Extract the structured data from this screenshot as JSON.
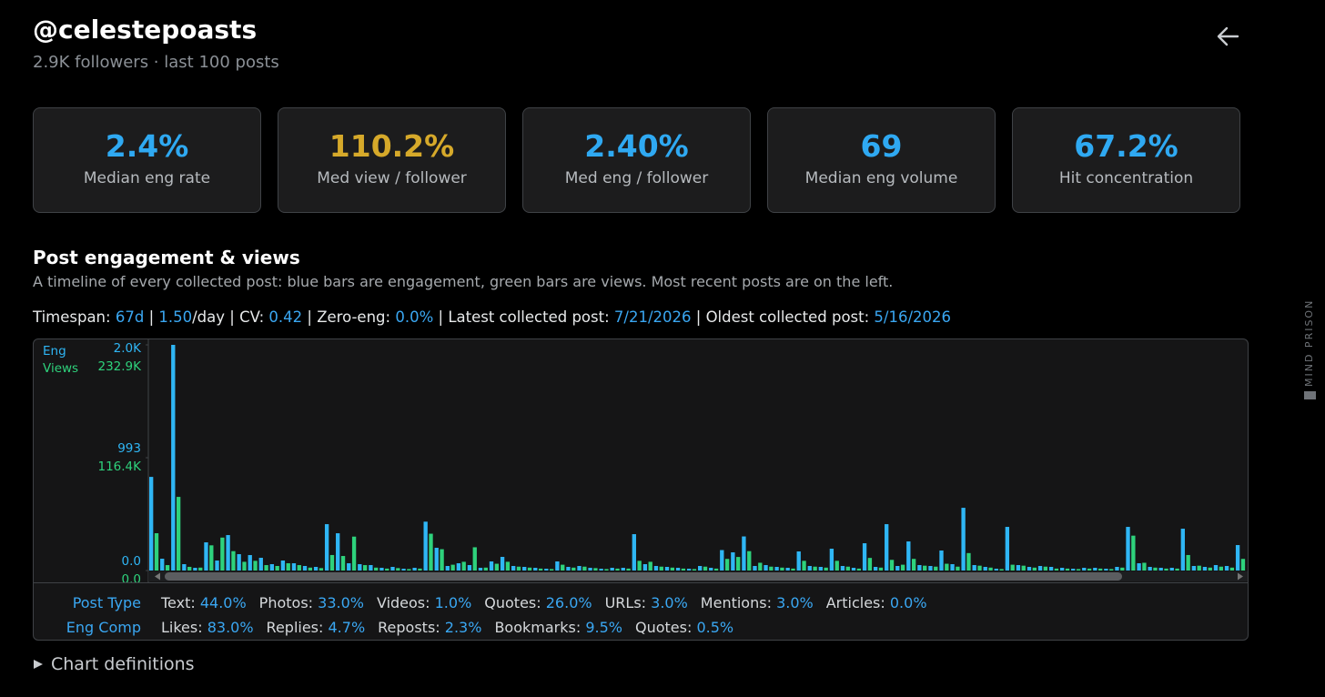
{
  "header": {
    "title": "@celestepoasts",
    "subtitle": "2.9K followers · last 100 posts"
  },
  "stats": [
    {
      "value": "2.4%",
      "label": "Median eng rate",
      "color": "#2fa9f2"
    },
    {
      "value": "110.2%",
      "label": "Med view / follower",
      "color": "#d6a92a"
    },
    {
      "value": "2.40%",
      "label": "Med eng / follower",
      "color": "#2fa9f2"
    },
    {
      "value": "69",
      "label": "Median eng volume",
      "color": "#2fa9f2"
    },
    {
      "value": "67.2%",
      "label": "Hit concentration",
      "color": "#2fa9f2"
    }
  ],
  "section": {
    "title": "Post engagement & views",
    "description": "A timeline of every collected post: blue bars are engagement, green bars are views. Most recent posts are on the left."
  },
  "meta": {
    "separator": "|",
    "items": [
      {
        "label": "Timespan:",
        "value": "67d"
      },
      {
        "value": "1.50",
        "suffix": "/day"
      },
      {
        "label": "CV:",
        "value": "0.42"
      },
      {
        "label": "Zero-eng:",
        "value": "0.0%"
      },
      {
        "label": "Latest collected post:",
        "value": "7/21/2026"
      },
      {
        "label": "Oldest collected post:",
        "value": "5/16/2026"
      }
    ]
  },
  "chart_data": {
    "type": "bar",
    "y_label": "Eng",
    "y2_label": "Views",
    "ylim": [
      0,
      1986
    ],
    "yticks": [
      {
        "value": 0,
        "label": "0.0"
      },
      993,
      {
        "value": 1986,
        "label": "2.0K"
      }
    ],
    "y2lim": [
      0,
      232900
    ],
    "y2ticks": [
      {
        "value": 0,
        "label": "0.0"
      },
      {
        "value": 116400,
        "label": "116.4K"
      },
      {
        "value": 232900,
        "label": "232.9K"
      }
    ],
    "series": [
      {
        "name": "Eng",
        "color": "#2fb6f5",
        "values": [
          824,
          104,
          1986,
          56,
          24,
          248,
          88,
          312,
          144,
          136,
          112,
          56,
          88,
          64,
          40,
          32,
          408,
          328,
          64,
          56,
          48,
          24,
          32,
          16,
          24,
          430,
          200,
          40,
          64,
          48,
          24,
          80,
          120,
          40,
          32,
          24,
          16,
          80,
          32,
          40,
          24,
          16,
          24,
          24,
          320,
          56,
          40,
          32,
          24,
          16,
          40,
          24,
          180,
          160,
          300,
          40,
          48,
          32,
          24,
          168,
          40,
          32,
          192,
          40,
          24,
          240,
          32,
          408,
          40,
          256,
          48,
          40,
          176,
          56,
          552,
          48,
          32,
          16,
          384,
          48,
          32,
          40,
          32,
          24,
          16,
          24,
          24,
          16,
          32,
          384,
          64,
          32,
          24,
          24,
          368,
          40,
          32,
          48,
          40,
          224
        ]
      },
      {
        "name": "Views",
        "color": "#2ed27c",
        "axis": "y2",
        "values": [
          38500,
          5600,
          76000,
          3800,
          3000,
          26000,
          34000,
          20000,
          9000,
          10000,
          5600,
          4700,
          7500,
          5600,
          3000,
          2500,
          16000,
          15000,
          35000,
          5600,
          3000,
          2000,
          2500,
          1500,
          2000,
          38000,
          22000,
          6000,
          9000,
          24000,
          3000,
          7000,
          9000,
          4000,
          3000,
          2000,
          1500,
          6000,
          3000,
          4000,
          2500,
          1500,
          2000,
          2000,
          10000,
          9000,
          4000,
          3000,
          2000,
          1500,
          4000,
          2000,
          12000,
          14000,
          20000,
          8000,
          4000,
          3000,
          2000,
          10000,
          4000,
          3000,
          10000,
          4000,
          2000,
          13000,
          3000,
          11000,
          6000,
          12000,
          5000,
          4000,
          7000,
          4000,
          18000,
          5000,
          3000,
          1500,
          6000,
          5000,
          3000,
          4000,
          2000,
          2000,
          1500,
          2000,
          2000,
          1500,
          3000,
          36000,
          8000,
          3000,
          2000,
          2000,
          16000,
          5000,
          3000,
          4000,
          3000,
          12000
        ]
      }
    ]
  },
  "breakdown": [
    {
      "label": "Post Type",
      "items": [
        {
          "label": "Text:",
          "value": "44.0%"
        },
        {
          "label": "Photos:",
          "value": "33.0%"
        },
        {
          "label": "Videos:",
          "value": "1.0%"
        },
        {
          "label": "Quotes:",
          "value": "26.0%"
        },
        {
          "label": "URLs:",
          "value": "3.0%"
        },
        {
          "label": "Mentions:",
          "value": "3.0%"
        },
        {
          "label": "Articles:",
          "value": "0.0%"
        }
      ]
    },
    {
      "label": "Eng Comp",
      "items": [
        {
          "label": "Likes:",
          "value": "83.0%"
        },
        {
          "label": "Replies:",
          "value": "4.7%"
        },
        {
          "label": "Reposts:",
          "value": "2.3%"
        },
        {
          "label": "Bookmarks:",
          "value": "9.5%"
        },
        {
          "label": "Quotes:",
          "value": "0.5%"
        }
      ]
    }
  ],
  "definitions": "Chart definitions",
  "watermark": "MIND PRISON"
}
